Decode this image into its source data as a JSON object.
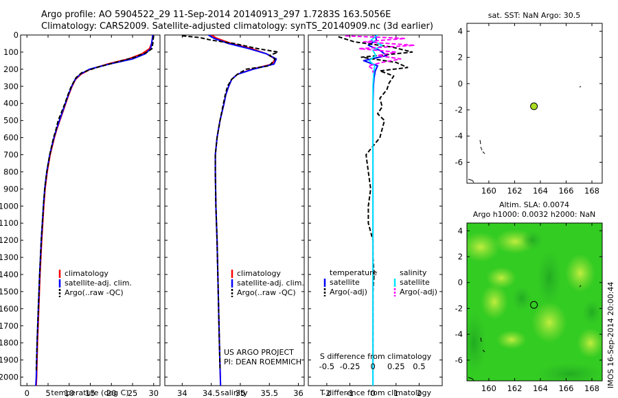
{
  "header": {
    "line1": "Argo profile: AO 5904522_29 11-Sep-2014 20140913_297 1.7283S 163.5056E",
    "line2": "Climatology: CARS2009. Satellite-adjusted climatology: synTS_20140909.nc (3d earlier)"
  },
  "sst_title": "sat. SST: NaN Argo: 30.5",
  "sla_title_1": "Altim. SLA: 0.0074",
  "sla_title_2": "Argo h1000: 0.0032 h2000: NaN",
  "side_stamp": "IMOS 16-Sep-2014 20:00:44",
  "credit_1": "US ARGO PROJECT",
  "credit_2": "PI: DEAN ROEMMICH",
  "colors": {
    "climatology": "#ff0000",
    "satellite": "#0000ff",
    "argo": "#000000",
    "salinity_sat": "#00e5ff",
    "salinity_argo": "#ff00ff",
    "sst_marker": "#aadd22",
    "sla_field": "#33cc22"
  },
  "chart_data": [
    {
      "id": "temperature",
      "type": "line",
      "xlabel": "temperature (deg C)",
      "xlim": [
        -1.5,
        31.5
      ],
      "xticks": [
        0,
        5,
        10,
        15,
        20,
        25,
        30
      ],
      "ylim": [
        2050,
        0
      ],
      "yticks": [
        0,
        100,
        200,
        300,
        400,
        500,
        600,
        700,
        800,
        900,
        1000,
        1100,
        1200,
        1300,
        1400,
        1500,
        1600,
        1700,
        1800,
        1900,
        2000
      ],
      "legend": [
        "climatology",
        "satellite-adj. clim.",
        "Argo(..raw -QC)"
      ],
      "series": [
        {
          "name": "climatology",
          "style": "climatology",
          "depth": [
            0,
            20,
            50,
            80,
            110,
            140,
            170,
            200,
            230,
            260,
            300,
            350,
            400,
            450,
            500,
            550,
            600,
            700,
            800,
            900,
            1000,
            1200,
            1400,
            1600,
            1800,
            2000,
            2050
          ],
          "values": [
            29.8,
            29.7,
            29.5,
            29.0,
            27.2,
            24.0,
            19.0,
            15.0,
            12.8,
            11.5,
            10.7,
            9.9,
            9.2,
            8.5,
            7.8,
            7.1,
            6.5,
            5.5,
            4.8,
            4.3,
            4.0,
            3.5,
            3.1,
            2.8,
            2.5,
            2.3,
            2.2
          ]
        },
        {
          "name": "satellite-adj. clim.",
          "style": "satellite",
          "depth": [
            0,
            20,
            50,
            80,
            110,
            140,
            170,
            200,
            230,
            260,
            300,
            350,
            400,
            450,
            500,
            550,
            600,
            700,
            800,
            900,
            1000,
            1200,
            1400,
            1600,
            1800,
            2000,
            2050
          ],
          "values": [
            29.8,
            29.7,
            29.5,
            29.3,
            28.0,
            25.0,
            19.5,
            14.8,
            12.6,
            11.4,
            10.6,
            9.8,
            9.1,
            8.4,
            7.7,
            7.0,
            6.4,
            5.4,
            4.7,
            4.2,
            3.9,
            3.4,
            3.0,
            2.7,
            2.4,
            2.2,
            2.1
          ]
        },
        {
          "name": "Argo(..raw -QC)",
          "style": "argo",
          "depth": [
            5,
            20,
            50,
            80,
            100,
            130,
            160,
            190,
            220,
            250,
            300,
            350,
            400,
            450,
            500,
            550,
            600,
            700,
            800,
            900,
            1000,
            1200,
            1400,
            1600,
            1800,
            1960
          ],
          "values": [
            30.0,
            29.9,
            29.8,
            29.6,
            28.5,
            25.5,
            21.0,
            16.5,
            13.0,
            11.6,
            10.5,
            9.7,
            9.0,
            8.2,
            7.4,
            6.9,
            6.3,
            5.4,
            4.7,
            4.2,
            3.9,
            3.4,
            3.0,
            2.7,
            2.4,
            2.2
          ]
        }
      ]
    },
    {
      "id": "salinity",
      "type": "line",
      "xlabel": "salinity",
      "xlim": [
        33.7,
        36.1
      ],
      "xticks": [
        34,
        34.5,
        35,
        35.5,
        36
      ],
      "ylim": [
        2050,
        0
      ],
      "legend": [
        "climatology",
        "satellite-adj. clim.",
        "Argo(..raw -QC)"
      ],
      "credit": [
        "US ARGO PROJECT",
        "PI: DEAN ROEMMICH"
      ],
      "series": [
        {
          "name": "climatology",
          "style": "climatology",
          "depth": [
            0,
            20,
            50,
            80,
            110,
            140,
            170,
            200,
            230,
            260,
            300,
            350,
            400,
            500,
            600,
            700,
            800,
            1000,
            1200,
            1500,
            1800,
            2050
          ],
          "values": [
            34.5,
            34.6,
            34.85,
            35.2,
            35.45,
            35.6,
            35.55,
            35.2,
            34.95,
            34.85,
            34.8,
            34.75,
            34.72,
            34.65,
            34.6,
            34.57,
            34.57,
            34.58,
            34.6,
            34.62,
            34.64,
            34.66
          ]
        },
        {
          "name": "satellite-adj. clim.",
          "style": "satellite",
          "depth": [
            0,
            20,
            50,
            80,
            110,
            140,
            170,
            200,
            230,
            260,
            300,
            350,
            400,
            500,
            600,
            700,
            800,
            1000,
            1200,
            1500,
            1800,
            2050
          ],
          "values": [
            34.45,
            34.55,
            34.8,
            35.15,
            35.45,
            35.62,
            35.58,
            35.22,
            34.95,
            34.85,
            34.8,
            34.75,
            34.72,
            34.65,
            34.6,
            34.57,
            34.57,
            34.58,
            34.6,
            34.62,
            34.64,
            34.66
          ]
        },
        {
          "name": "Argo(..raw -QC)",
          "style": "argo",
          "depth": [
            5,
            15,
            30,
            50,
            80,
            100,
            120,
            140,
            160,
            180,
            200,
            230,
            260,
            300,
            350,
            400,
            500,
            600,
            700,
            800,
            1000,
            1200,
            1500,
            1800,
            1960
          ],
          "values": [
            34.0,
            34.3,
            34.5,
            34.9,
            35.3,
            35.65,
            35.5,
            35.6,
            35.55,
            35.5,
            35.1,
            34.95,
            34.85,
            34.78,
            34.74,
            34.71,
            34.65,
            34.6,
            34.57,
            34.57,
            34.58,
            34.6,
            34.62,
            34.64,
            34.65
          ]
        }
      ]
    },
    {
      "id": "differences",
      "type": "line",
      "xlabel": "T difference from climatology",
      "xlabel_top": "S difference from climatology",
      "xlim": [
        -2.8,
        3.0
      ],
      "xticks": [
        -2,
        -1,
        0,
        1,
        2
      ],
      "xticks_top": [
        "-0.5",
        "-0.25",
        "0",
        "0.25",
        "0.5"
      ],
      "ylim": [
        2050,
        0
      ],
      "legend_left_title": "temperature",
      "legend_right_title": "salinity",
      "legend_left": [
        "satellite",
        "Argo(-adj)"
      ],
      "legend_right": [
        "satellite",
        "Argo(-adj)"
      ],
      "series": [
        {
          "name": "temperature satellite",
          "style": "satellite",
          "depth": [
            0,
            30,
            60,
            90,
            120,
            150,
            180,
            210,
            250,
            300,
            400,
            600,
            800,
            1000,
            1500,
            2050
          ],
          "values": [
            0.1,
            0.15,
            -0.2,
            0.3,
            0.6,
            -0.4,
            0.2,
            0.1,
            0.05,
            0.02,
            0.0,
            0.0,
            0.0,
            0.0,
            0.0,
            0.0
          ]
        },
        {
          "name": "temperature Argo(-adj)",
          "style": "argo",
          "depth": [
            10,
            40,
            70,
            100,
            130,
            160,
            190,
            210,
            240,
            280,
            320,
            370,
            420,
            460,
            500,
            600,
            700,
            800,
            900,
            1000,
            1100,
            1200,
            1300,
            1400,
            1500,
            1700,
            1900,
            1960
          ],
          "values": [
            -1.5,
            -0.8,
            0.8,
            1.7,
            -0.5,
            1.0,
            1.5,
            0.3,
            0.9,
            0.7,
            0.6,
            0.3,
            0.4,
            0.2,
            0.5,
            0.3,
            -0.3,
            -0.2,
            -0.1,
            -0.2,
            -0.2,
            0.0,
            0.0,
            0.05,
            0.0,
            0.0,
            0.0,
            0.0
          ]
        },
        {
          "name": "salinity satellite",
          "style": "salinity_sat",
          "depth": [
            0,
            30,
            60,
            90,
            120,
            150,
            180,
            210,
            300,
            500,
            1000,
            2050
          ],
          "values": [
            0.05,
            -0.02,
            0.1,
            0.0,
            0.03,
            -0.04,
            0.02,
            0.01,
            0.0,
            0.0,
            0.0,
            0.0
          ]
        },
        {
          "name": "salinity Argo(-adj)",
          "style": "salinity_argo",
          "depth": [
            5,
            20,
            40,
            60,
            80,
            100,
            120,
            140,
            160,
            180,
            200,
            220
          ],
          "values": [
            -0.3,
            0.35,
            -0.1,
            0.45,
            -0.15,
            0.25,
            0.05,
            0.3,
            0.1,
            -0.05,
            0.0,
            0.0
          ]
        }
      ]
    },
    {
      "id": "sst_map",
      "type": "scatter",
      "title": "sat. SST: NaN Argo: 30.5",
      "xlim": [
        158.3,
        168.8
      ],
      "xticks": [
        160,
        162,
        164,
        166,
        168
      ],
      "ylim": [
        -7.6,
        4.6
      ],
      "yticks": [
        4,
        2,
        0,
        -2,
        -4,
        -6
      ],
      "points": [
        {
          "lon": 163.5,
          "lat": -1.73
        }
      ]
    },
    {
      "id": "sla_map",
      "type": "heatmap",
      "title": "Altim. SLA: 0.0074",
      "xlim": [
        158.3,
        168.8
      ],
      "xticks": [
        160,
        162,
        164,
        166,
        168
      ],
      "ylim": [
        -7.6,
        4.6
      ],
      "yticks": [
        4,
        2,
        0,
        -2,
        -4,
        -6
      ],
      "points": [
        {
          "lon": 163.5,
          "lat": -1.73
        }
      ]
    }
  ]
}
